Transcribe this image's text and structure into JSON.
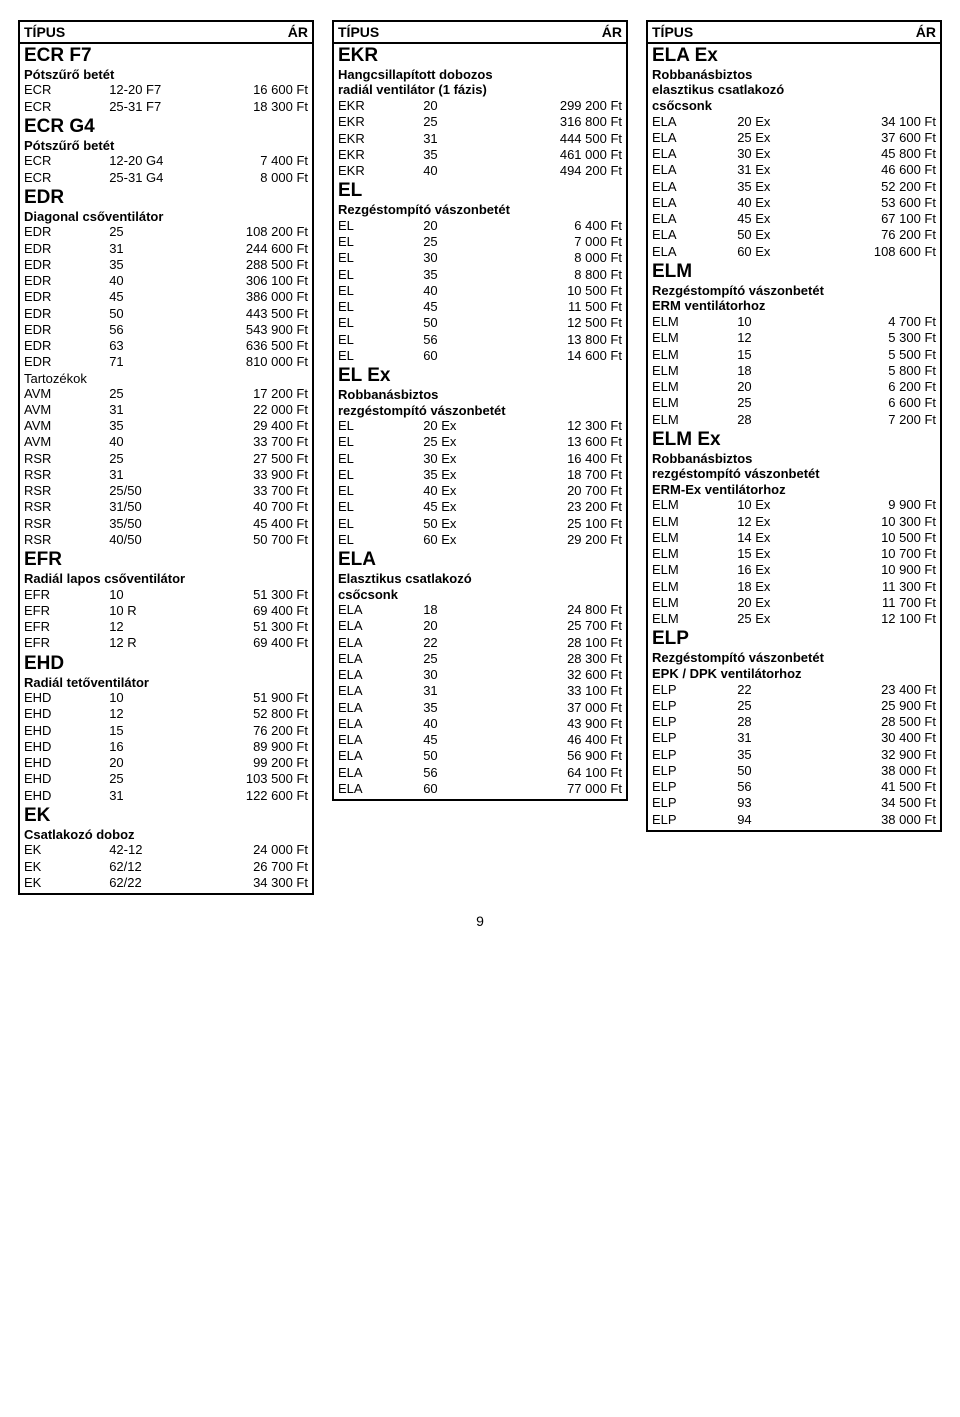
{
  "hdr": {
    "type": "TÍPUS",
    "price": "ÁR"
  },
  "pagenum": "9",
  "cols": [
    [
      {
        "title": "ECR F7",
        "sub": [
          "Pótszűrő betét"
        ],
        "rows": [
          [
            "ECR",
            "12-20 F7",
            "16 600 Ft"
          ],
          [
            "ECR",
            "25-31 F7",
            "18 300 Ft"
          ]
        ]
      },
      {
        "title": "ECR G4",
        "sub": [
          "Pótszűrő betét"
        ],
        "rows": [
          [
            "ECR",
            "12-20 G4",
            "7 400 Ft"
          ],
          [
            "ECR",
            "25-31 G4",
            "8 000 Ft"
          ]
        ]
      },
      {
        "title": "EDR",
        "sub": [
          "Diagonal csőventilátor"
        ],
        "rows": [
          [
            "EDR",
            "25",
            "108 200 Ft"
          ],
          [
            "EDR",
            "31",
            "244 600 Ft"
          ],
          [
            "EDR",
            "35",
            "288 500 Ft"
          ],
          [
            "EDR",
            "40",
            "306 100 Ft"
          ],
          [
            "EDR",
            "45",
            "386 000 Ft"
          ],
          [
            "EDR",
            "50",
            "443 500 Ft"
          ],
          [
            "EDR",
            "56",
            "543 900 Ft"
          ],
          [
            "EDR",
            "63",
            "636 500 Ft"
          ],
          [
            "EDR",
            "71",
            "810 000 Ft"
          ]
        ],
        "sub2": "Tartozékok",
        "rows2": [
          [
            "AVM",
            "25",
            "17 200 Ft"
          ],
          [
            "AVM",
            "31",
            "22 000 Ft"
          ],
          [
            "AVM",
            "35",
            "29 400 Ft"
          ],
          [
            "AVM",
            "40",
            "33 700 Ft"
          ],
          [
            "RSR",
            "25",
            "27 500 Ft"
          ],
          [
            "RSR",
            "31",
            "33 900 Ft"
          ],
          [
            "RSR",
            "25/50",
            "33 700 Ft"
          ],
          [
            "RSR",
            "31/50",
            "40 700 Ft"
          ],
          [
            "RSR",
            "35/50",
            "45 400 Ft"
          ],
          [
            "RSR",
            "40/50",
            "50 700 Ft"
          ]
        ]
      },
      {
        "title": "EFR",
        "sub": [
          "Radiál lapos csőventilátor"
        ],
        "rows": [
          [
            "EFR",
            "10",
            "51 300 Ft"
          ],
          [
            "EFR",
            "10 R",
            "69 400 Ft"
          ],
          [
            "EFR",
            "12",
            "51 300 Ft"
          ],
          [
            "EFR",
            "12 R",
            "69 400 Ft"
          ]
        ]
      },
      {
        "title": "EHD",
        "sub": [
          "Radiál tetőventilátor"
        ],
        "rows": [
          [
            "EHD",
            "10",
            "51 900 Ft"
          ],
          [
            "EHD",
            "12",
            "52 800 Ft"
          ],
          [
            "EHD",
            "15",
            "76 200 Ft"
          ],
          [
            "EHD",
            "16",
            "89 900 Ft"
          ],
          [
            "EHD",
            "20",
            "99 200 Ft"
          ],
          [
            "EHD",
            "25",
            "103 500 Ft"
          ],
          [
            "EHD",
            "31",
            "122 600 Ft"
          ]
        ]
      },
      {
        "title": "EK",
        "sub": [
          "Csatlakozó doboz"
        ],
        "rows": [
          [
            "EK",
            "42-12",
            "24 000 Ft"
          ],
          [
            "EK",
            "62/12",
            "26 700 Ft"
          ],
          [
            "EK",
            "62/22",
            "34 300 Ft"
          ]
        ]
      }
    ],
    [
      {
        "title": "EKR",
        "sub": [
          "Hangcsillapított dobozos",
          "radiál ventilátor (1 fázis)"
        ],
        "rows": [
          [
            "EKR",
            "20",
            "299 200 Ft"
          ],
          [
            "EKR",
            "25",
            "316 800 Ft"
          ],
          [
            "EKR",
            "31",
            "444 500 Ft"
          ],
          [
            "EKR",
            "35",
            "461 000 Ft"
          ],
          [
            "EKR",
            "40",
            "494 200 Ft"
          ]
        ]
      },
      {
        "title": "EL",
        "sub": [
          "Rezgéstompító vászonbetét"
        ],
        "rows": [
          [
            "EL",
            "20",
            "6 400 Ft"
          ],
          [
            "EL",
            "25",
            "7 000 Ft"
          ],
          [
            "EL",
            "30",
            "8 000 Ft"
          ],
          [
            "EL",
            "35",
            "8 800 Ft"
          ],
          [
            "EL",
            "40",
            "10 500 Ft"
          ],
          [
            "EL",
            "45",
            "11 500 Ft"
          ],
          [
            "EL",
            "50",
            "12 500 Ft"
          ],
          [
            "EL",
            "56",
            "13 800 Ft"
          ],
          [
            "EL",
            "60",
            "14 600 Ft"
          ]
        ]
      },
      {
        "title": "EL Ex",
        "sub": [
          "Robbanásbiztos",
          "rezgéstompító vászonbetét"
        ],
        "rows": [
          [
            "EL",
            "20 Ex",
            "12 300 Ft"
          ],
          [
            "EL",
            "25 Ex",
            "13 600 Ft"
          ],
          [
            "EL",
            "30 Ex",
            "16 400 Ft"
          ],
          [
            "EL",
            "35 Ex",
            "18 700 Ft"
          ],
          [
            "EL",
            "40 Ex",
            "20 700 Ft"
          ],
          [
            "EL",
            "45 Ex",
            "23 200 Ft"
          ],
          [
            "EL",
            "50 Ex",
            "25 100 Ft"
          ],
          [
            "EL",
            "60 Ex",
            "29 200 Ft"
          ]
        ]
      },
      {
        "title": "ELA",
        "sub": [
          "Elasztikus csatlakozó",
          "csőcsonk"
        ],
        "rows": [
          [
            "ELA",
            "18",
            "24 800 Ft"
          ],
          [
            "ELA",
            "20",
            "25 700 Ft"
          ],
          [
            "ELA",
            "22",
            "28 100 Ft"
          ],
          [
            "ELA",
            "25",
            "28 300 Ft"
          ],
          [
            "ELA",
            "30",
            "32 600 Ft"
          ],
          [
            "ELA",
            "31",
            "33 100 Ft"
          ],
          [
            "ELA",
            "35",
            "37 000 Ft"
          ],
          [
            "ELA",
            "40",
            "43 900 Ft"
          ],
          [
            "ELA",
            "45",
            "46 400 Ft"
          ],
          [
            "ELA",
            "50",
            "56 900 Ft"
          ],
          [
            "ELA",
            "56",
            "64 100 Ft"
          ],
          [
            "ELA",
            "60",
            "77 000 Ft"
          ]
        ]
      }
    ],
    [
      {
        "title": "ELA Ex",
        "sub": [
          "Robbanásbiztos",
          "elasztikus csatlakozó",
          "csőcsonk"
        ],
        "rows": [
          [
            "ELA",
            "20 Ex",
            "34 100 Ft"
          ],
          [
            "ELA",
            "25 Ex",
            "37 600 Ft"
          ],
          [
            "ELA",
            "30 Ex",
            "45 800 Ft"
          ],
          [
            "ELA",
            "31 Ex",
            "46 600 Ft"
          ],
          [
            "ELA",
            "35 Ex",
            "52 200 Ft"
          ],
          [
            "ELA",
            "40 Ex",
            "53 600 Ft"
          ],
          [
            "ELA",
            "45 Ex",
            "67 100 Ft"
          ],
          [
            "ELA",
            "50 Ex",
            "76 200 Ft"
          ],
          [
            "ELA",
            "60 Ex",
            "108 600 Ft"
          ]
        ]
      },
      {
        "title": "ELM",
        "sub": [
          "Rezgéstompító vászonbetét",
          "ERM  ventilátorhoz"
        ],
        "rows": [
          [
            "ELM",
            "10",
            "4 700 Ft"
          ],
          [
            "ELM",
            "12",
            "5 300 Ft"
          ],
          [
            "ELM",
            "15",
            "5 500 Ft"
          ],
          [
            "ELM",
            "18",
            "5 800 Ft"
          ],
          [
            "ELM",
            "20",
            "6 200 Ft"
          ],
          [
            "ELM",
            "25",
            "6 600 Ft"
          ],
          [
            "ELM",
            "28",
            "7 200 Ft"
          ]
        ]
      },
      {
        "title": "ELM Ex",
        "sub": [
          "Robbanásbiztos",
          "rezgéstompító vászonbetét",
          "ERM-Ex  ventilátorhoz"
        ],
        "rows": [
          [
            "ELM",
            "10 Ex",
            "9 900 Ft"
          ],
          [
            "ELM",
            "12 Ex",
            "10 300 Ft"
          ],
          [
            "ELM",
            "14 Ex",
            "10 500 Ft"
          ],
          [
            "ELM",
            "15 Ex",
            "10 700 Ft"
          ],
          [
            "ELM",
            "16 Ex",
            "10 900 Ft"
          ],
          [
            "ELM",
            "18 Ex",
            "11 300 Ft"
          ],
          [
            "ELM",
            "20 Ex",
            "11 700 Ft"
          ],
          [
            "ELM",
            "25 Ex",
            "12 100 Ft"
          ]
        ]
      },
      {
        "title": "ELP",
        "sub": [
          "Rezgéstompító vászonbetét",
          "EPK / DPK ventilátorhoz"
        ],
        "rows": [
          [
            "ELP",
            "22",
            "23 400 Ft"
          ],
          [
            "ELP",
            "25",
            "25 900 Ft"
          ],
          [
            "ELP",
            "28",
            "28 500 Ft"
          ],
          [
            "ELP",
            "31",
            "30 400 Ft"
          ],
          [
            "ELP",
            "35",
            "32 900 Ft"
          ],
          [
            "ELP",
            "50",
            "38 000 Ft"
          ],
          [
            "ELP",
            "56",
            "41 500 Ft"
          ],
          [
            "ELP",
            "93",
            "34 500 Ft"
          ],
          [
            "ELP",
            "94",
            "38 000 Ft"
          ]
        ]
      }
    ]
  ]
}
